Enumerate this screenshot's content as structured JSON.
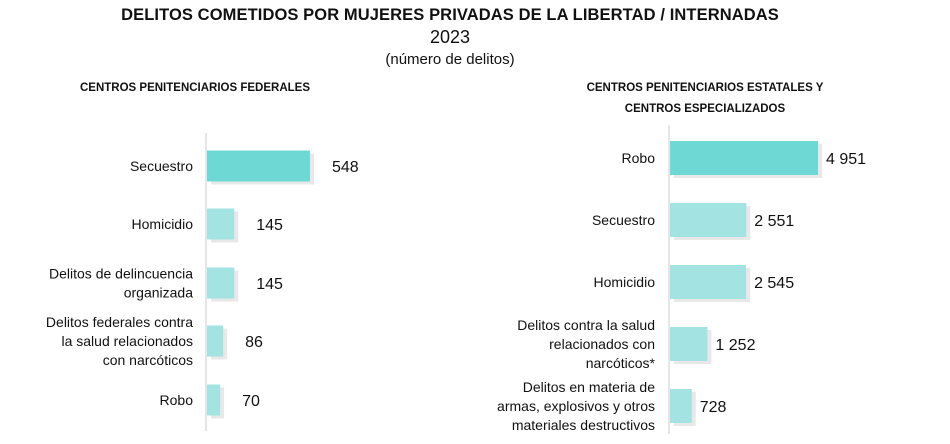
{
  "title": "DELITOS COMETIDOS POR MUJERES PRIVADAS DE LA LIBERTAD / INTERNADAS",
  "year": "2023",
  "unit": "(número de delitos)",
  "colors": {
    "highlight": "#6ed8d5",
    "bar": "#a3e3e1",
    "axis": "#cccccc"
  },
  "chart_data": [
    {
      "type": "bar",
      "orientation": "horizontal",
      "title": "CENTROS PENITENCIARIOS FEDERALES",
      "categories": [
        "Secuestro",
        "Homicidio",
        "Delitos de delincuencia organizada",
        "Delitos federales contra la salud relacionados con narcóticos",
        "Robo"
      ],
      "category_lines": [
        [
          "Secuestro"
        ],
        [
          "Homicidio"
        ],
        [
          "Delitos de delincuencia",
          "organizada"
        ],
        [
          "Delitos federales contra",
          "la salud relacionados",
          "con narcóticos"
        ],
        [
          "Robo"
        ]
      ],
      "values": [
        548,
        145,
        145,
        86,
        70
      ],
      "value_labels": [
        "548",
        "145",
        "145",
        "86",
        "70"
      ],
      "legend": "none",
      "grid": false
    },
    {
      "type": "bar",
      "orientation": "horizontal",
      "title": "CENTROS PENITENCIARIOS ESTATALES Y CENTROS ESPECIALIZADOS",
      "title_lines": [
        "CENTROS PENITENCIARIOS ESTATALES Y",
        "CENTROS ESPECIALIZADOS"
      ],
      "categories": [
        "Robo",
        "Secuestro",
        "Homicidio",
        "Delitos contra la salud relacionados con narcóticos*",
        "Delitos en materia de armas, explosivos y otros materiales destructivos"
      ],
      "category_lines": [
        [
          "Robo"
        ],
        [
          "Secuestro"
        ],
        [
          "Homicidio"
        ],
        [
          "Delitos contra la salud",
          "relacionados con",
          "narcóticos*"
        ],
        [
          "Delitos en materia de",
          "armas, explosivos y otros",
          "materiales destructivos"
        ]
      ],
      "values": [
        4951,
        2551,
        2545,
        1252,
        728
      ],
      "value_labels": [
        "4 951",
        "2 551",
        "2 545",
        "1 252",
        "728"
      ],
      "legend": "none",
      "grid": false
    }
  ]
}
